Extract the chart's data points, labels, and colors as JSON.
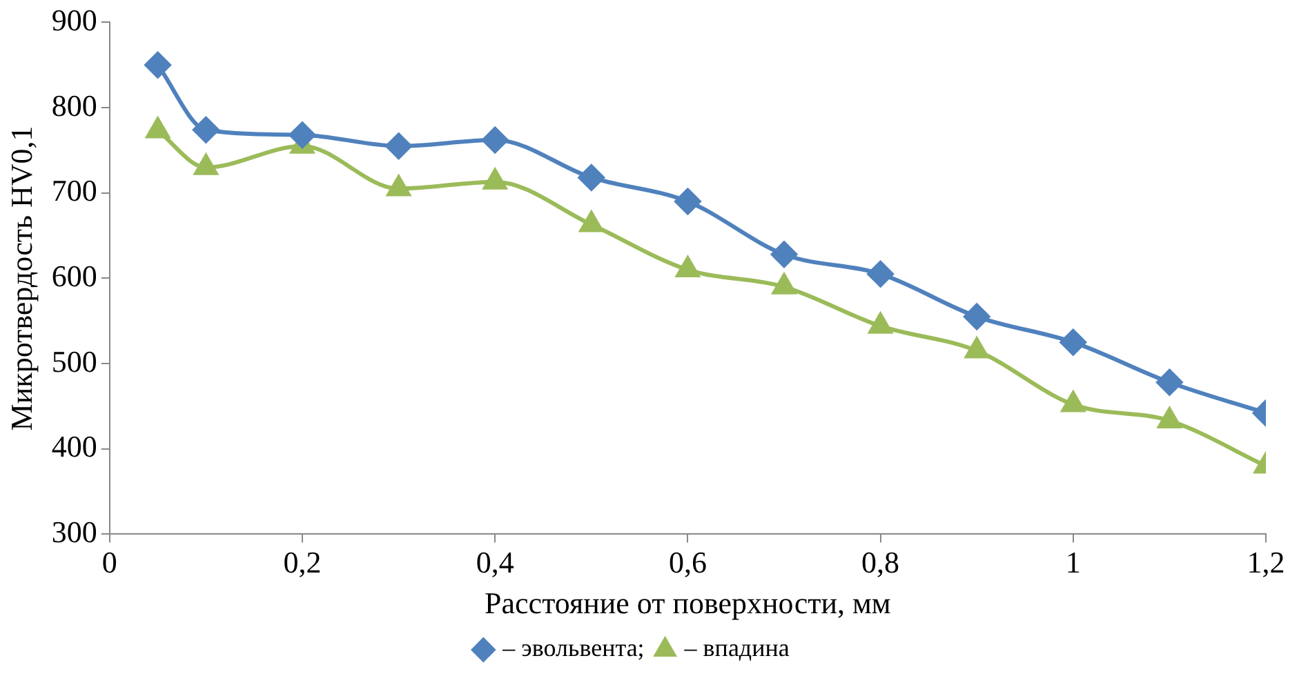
{
  "chart_data": {
    "type": "line",
    "xlabel": "Расстояние от поверхности, мм",
    "ylabel": "Микротвердость HV0,1",
    "x": [
      0.05,
      0.1,
      0.2,
      0.3,
      0.4,
      0.5,
      0.6,
      0.7,
      0.8,
      0.9,
      1.0,
      1.1,
      1.2
    ],
    "series": [
      {
        "name": "– эвольвента;",
        "color": "#4f81bd",
        "marker": "diamond",
        "values": [
          850,
          774,
          768,
          755,
          762,
          718,
          690,
          628,
          605,
          555,
          525,
          478,
          442
        ]
      },
      {
        "name": "– впадина",
        "color": "#9bbb59",
        "marker": "triangle",
        "values": [
          773,
          730,
          755,
          705,
          713,
          663,
          610,
          590,
          544,
          515,
          452,
          433,
          380
        ]
      }
    ],
    "xlim": [
      0,
      1.2
    ],
    "xticks": [
      0,
      {
        "value": 0.2,
        "label": "0,2"
      },
      {
        "value": 0.4,
        "label": "0,4"
      },
      {
        "value": 0.6,
        "label": "0,6"
      },
      {
        "value": 0.8,
        "label": "0,8"
      },
      1,
      {
        "value": 1.2,
        "label": "1,2"
      }
    ],
    "ylim": [
      300,
      900
    ],
    "yticks": [
      300,
      400,
      500,
      600,
      700,
      800,
      900
    ],
    "grid": false,
    "legend": "bottom",
    "line_style": "solid"
  }
}
